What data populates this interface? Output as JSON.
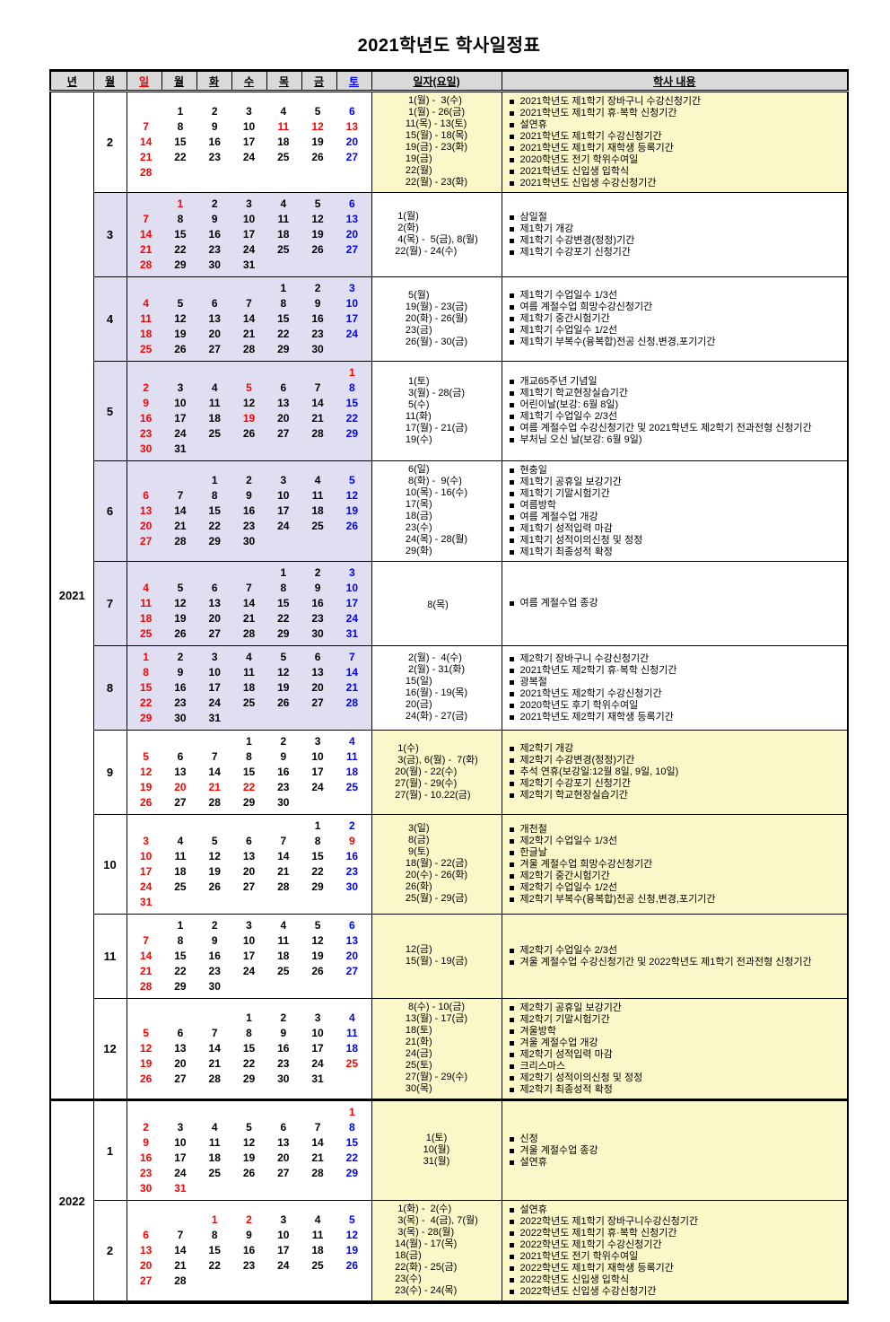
{
  "title": "2021학년도  학사일정표",
  "table_header": {
    "year": "년",
    "month": "월",
    "weekdays": [
      "일",
      "월",
      "화",
      "수",
      "목",
      "금",
      "토"
    ],
    "date": "일자(요일)",
    "content": "학사 내용"
  },
  "colors": {
    "sunday_red": "#ff0000",
    "saturday_blue": "#0000ff",
    "holiday_red": "#ff0000",
    "first_semester_calendar_bg": "#dfdff1",
    "second_semester_panel_bg": "#faf8c8",
    "header_bg": "#d9d9d9"
  },
  "years": [
    {
      "label": "2021",
      "months": [
        {
          "month": "2",
          "theme": "yellow",
          "red": [
            11,
            12,
            13
          ],
          "weeks": [
            [
              null,
              1,
              2,
              3,
              4,
              5,
              6
            ],
            [
              7,
              8,
              9,
              10,
              11,
              12,
              13
            ],
            [
              14,
              15,
              16,
              17,
              18,
              19,
              20
            ],
            [
              21,
              22,
              23,
              24,
              25,
              26,
              27
            ],
            [
              28,
              null,
              null,
              null,
              null,
              null,
              null
            ]
          ],
          "dates": [
            " 1(월) -  3(수)",
            " 1(월) - 26(금)",
            "11(목) - 13(토)",
            "15(월) - 18(목)",
            "19(금) - 23(화)",
            "19(금)",
            "22(월)",
            "22(월) - 23(화)"
          ],
          "events": [
            "2021학년도 제1학기 장바구니 수강신청기간",
            "2021학년도 제1학기 휴·복학 신청기간",
            "설연휴",
            "2021학년도 제1학기 수강신청기간",
            "2021학년도 제1학기 재학생 등록기간",
            "2020학년도 전기 학위수여일",
            "2021학년도 신입생 입학식",
            "2021학년도 신입생 수강신청기간"
          ]
        },
        {
          "month": "3",
          "theme": "lavender",
          "red": [
            1
          ],
          "weeks": [
            [
              null,
              1,
              2,
              3,
              4,
              5,
              6
            ],
            [
              7,
              8,
              9,
              10,
              11,
              12,
              13
            ],
            [
              14,
              15,
              16,
              17,
              18,
              19,
              20
            ],
            [
              21,
              22,
              23,
              24,
              25,
              26,
              27
            ],
            [
              28,
              29,
              30,
              31,
              null,
              null,
              null
            ]
          ],
          "dates": [
            " 1(월)",
            " 2(화)",
            " 4(목) -  5(금), 8(월)",
            "22(월) - 24(수)"
          ],
          "events": [
            "삼일절",
            "제1학기 개강",
            "제1학기 수강변경(정정)기간",
            "제1학기 수강포기 신청기간"
          ]
        },
        {
          "month": "4",
          "theme": "lavender",
          "red": [],
          "weeks": [
            [
              null,
              null,
              null,
              null,
              1,
              2,
              3
            ],
            [
              4,
              5,
              6,
              7,
              8,
              9,
              10
            ],
            [
              11,
              12,
              13,
              14,
              15,
              16,
              17
            ],
            [
              18,
              19,
              20,
              21,
              22,
              23,
              24
            ],
            [
              25,
              26,
              27,
              28,
              29,
              30,
              null
            ]
          ],
          "dates": [
            " 5(월)",
            "19(월) - 23(금)",
            "20(화) - 26(월)",
            "23(금)",
            "26(월) - 30(금)"
          ],
          "events": [
            "제1학기 수업일수 1/3선",
            "여름 계절수업 희망수강신청기간",
            "제1학기 중간시험기간",
            "제1학기 수업일수 1/2선",
            "제1학기 부복수(융복합)전공 신청,변경,포기기간"
          ]
        },
        {
          "month": "5",
          "theme": "lavender",
          "red": [
            1,
            5,
            19
          ],
          "weeks": [
            [
              null,
              null,
              null,
              null,
              null,
              null,
              1
            ],
            [
              2,
              3,
              4,
              5,
              6,
              7,
              8
            ],
            [
              9,
              10,
              11,
              12,
              13,
              14,
              15
            ],
            [
              16,
              17,
              18,
              19,
              20,
              21,
              22
            ],
            [
              23,
              24,
              25,
              26,
              27,
              28,
              29
            ],
            [
              30,
              31,
              null,
              null,
              null,
              null,
              null
            ]
          ],
          "dates": [
            " 1(토)",
            " 3(월) - 28(금)",
            " 5(수)",
            "11(화)",
            "17(월) - 21(금)",
            "19(수)"
          ],
          "events": [
            "개교65주년 기념일",
            "제1학기 학교현장실습기간",
            "어린이날(보강: 6월 8일)",
            "제1학기 수업일수 2/3선",
            "여름 계절수업 수강신청기간 및 2021학년도 제2학기 전과전형 신청기간",
            "부처님 오신 날(보강: 6월 9일)"
          ]
        },
        {
          "month": "6",
          "theme": "lavender",
          "red": [],
          "weeks": [
            [
              null,
              null,
              1,
              2,
              3,
              4,
              5
            ],
            [
              6,
              7,
              8,
              9,
              10,
              11,
              12
            ],
            [
              13,
              14,
              15,
              16,
              17,
              18,
              19
            ],
            [
              20,
              21,
              22,
              23,
              24,
              25,
              26
            ],
            [
              27,
              28,
              29,
              30,
              null,
              null,
              null
            ]
          ],
          "dates": [
            " 6(일)",
            " 8(화) -  9(수)",
            "10(목) - 16(수)",
            "17(목)",
            "18(금)",
            "23(수)",
            "24(목) - 28(월)",
            "29(화)"
          ],
          "events": [
            "현충일",
            "제1학기 공휴일 보강기간",
            "제1학기 기말시험기간",
            "여름방학",
            "여름 계절수업 개강",
            "제1학기 성적입력 마감",
            "제1학기 성적이의신청 및 정정",
            "제1학기 최종성적 확정"
          ]
        },
        {
          "month": "7",
          "theme": "lavender",
          "red": [],
          "weeks": [
            [
              null,
              null,
              null,
              null,
              1,
              2,
              3
            ],
            [
              4,
              5,
              6,
              7,
              8,
              9,
              10
            ],
            [
              11,
              12,
              13,
              14,
              15,
              16,
              17
            ],
            [
              18,
              19,
              20,
              21,
              22,
              23,
              24
            ],
            [
              25,
              26,
              27,
              28,
              29,
              30,
              31
            ]
          ],
          "dates": [
            " 8(목)"
          ],
          "events": [
            "여름 계절수업 종강"
          ]
        },
        {
          "month": "8",
          "theme": "lavender",
          "red": [],
          "weeks": [
            [
              1,
              2,
              3,
              4,
              5,
              6,
              7
            ],
            [
              8,
              9,
              10,
              11,
              12,
              13,
              14
            ],
            [
              15,
              16,
              17,
              18,
              19,
              20,
              21
            ],
            [
              22,
              23,
              24,
              25,
              26,
              27,
              28
            ],
            [
              29,
              30,
              31,
              null,
              null,
              null,
              null
            ]
          ],
          "dates": [
            " 2(월) -  4(수)",
            " 2(월) - 31(화)",
            "15(일)",
            "16(월) - 19(목)",
            "20(금)",
            "24(화) - 27(금)"
          ],
          "events": [
            "제2학기 장바구니 수강신청기간",
            "2021학년도 제2학기 휴·복학 신청기간",
            "광복절",
            "2021학년도 제2학기 수강신청기간",
            "2020학년도 후기 학위수여일",
            "2021학년도 제2학기 재학생 등록기간"
          ]
        },
        {
          "month": "9",
          "theme": "yellow",
          "red": [
            20,
            21,
            22
          ],
          "weeks": [
            [
              null,
              null,
              null,
              1,
              2,
              3,
              4
            ],
            [
              5,
              6,
              7,
              8,
              9,
              10,
              11
            ],
            [
              12,
              13,
              14,
              15,
              16,
              17,
              18
            ],
            [
              19,
              20,
              21,
              22,
              23,
              24,
              25
            ],
            [
              26,
              27,
              28,
              29,
              30,
              null,
              null
            ]
          ],
          "dates": [
            " 1(수)",
            " 3(금), 6(월) -  7(화)",
            "20(월) - 22(수)",
            "27(월) - 29(수)",
            "27(월) - 10.22(금)"
          ],
          "events": [
            "제2학기 개강",
            "제2학기 수강변경(정정)기간",
            "추석 연휴(보강일:12월 8일, 9일, 10일)",
            "제2학기 수강포기 신청기간",
            "제2학기 학교현장실습기간"
          ]
        },
        {
          "month": "10",
          "theme": "yellow",
          "red": [
            9
          ],
          "weeks": [
            [
              null,
              null,
              null,
              null,
              null,
              1,
              2
            ],
            [
              3,
              4,
              5,
              6,
              7,
              8,
              9
            ],
            [
              10,
              11,
              12,
              13,
              14,
              15,
              16
            ],
            [
              17,
              18,
              19,
              20,
              21,
              22,
              23
            ],
            [
              24,
              25,
              26,
              27,
              28,
              29,
              30
            ],
            [
              31,
              null,
              null,
              null,
              null,
              null,
              null
            ]
          ],
          "dates": [
            " 3(일)",
            " 8(금)",
            " 9(토)",
            "18(월) - 22(금)",
            "20(수) - 26(화)",
            "26(화)",
            "25(월) - 29(금)"
          ],
          "events": [
            "개천절",
            "제2학기 수업일수 1/3선",
            "한글날",
            "겨울 계절수업 희망수강신청기간",
            "제2학기 중간시험기간",
            "제2학기 수업일수 1/2선",
            "제2학기 부복수(융복합)전공 신청,변경,포기기간"
          ]
        },
        {
          "month": "11",
          "theme": "yellow",
          "red": [],
          "weeks": [
            [
              null,
              1,
              2,
              3,
              4,
              5,
              6
            ],
            [
              7,
              8,
              9,
              10,
              11,
              12,
              13
            ],
            [
              14,
              15,
              16,
              17,
              18,
              19,
              20
            ],
            [
              21,
              22,
              23,
              24,
              25,
              26,
              27
            ],
            [
              28,
              29,
              30,
              null,
              null,
              null,
              null
            ]
          ],
          "dates": [
            "12(금)",
            "15(월) - 19(금)"
          ],
          "events": [
            "제2학기 수업일수 2/3선",
            "겨울 계절수업 수강신청기간 및 2022학년도 제1학기 전과전형 신청기간"
          ]
        },
        {
          "month": "12",
          "theme": "yellow",
          "red": [
            25
          ],
          "weeks": [
            [
              null,
              null,
              null,
              1,
              2,
              3,
              4
            ],
            [
              5,
              6,
              7,
              8,
              9,
              10,
              11
            ],
            [
              12,
              13,
              14,
              15,
              16,
              17,
              18
            ],
            [
              19,
              20,
              21,
              22,
              23,
              24,
              25
            ],
            [
              26,
              27,
              28,
              29,
              30,
              31,
              null
            ]
          ],
          "dates": [
            " 8(수) - 10(금)",
            "13(월) - 17(금)",
            "18(토)",
            "21(화)",
            "24(금)",
            "25(토)",
            "27(월) - 29(수)",
            "30(목)"
          ],
          "events": [
            "제2학기 공휴일 보강기간",
            "제2학기 기말시험기간",
            "겨울방학",
            "겨울 계절수업 개강",
            "제2학기 성적입력 마감",
            "크리스마스",
            "제2학기 성적이의신청 및 정정",
            "제2학기 최종성적 확정"
          ]
        }
      ]
    },
    {
      "label": "2022",
      "months": [
        {
          "month": "1",
          "theme": "yellow",
          "red": [
            1,
            31
          ],
          "weeks": [
            [
              null,
              null,
              null,
              null,
              null,
              null,
              1
            ],
            [
              2,
              3,
              4,
              5,
              6,
              7,
              8
            ],
            [
              9,
              10,
              11,
              12,
              13,
              14,
              15
            ],
            [
              16,
              17,
              18,
              19,
              20,
              21,
              22
            ],
            [
              23,
              24,
              25,
              26,
              27,
              28,
              29
            ],
            [
              30,
              31,
              null,
              null,
              null,
              null,
              null
            ]
          ],
          "dates": [
            " 1(토)",
            "10(월)",
            "31(월)"
          ],
          "events": [
            "신정",
            "겨울 계절수업 종강",
            "설연휴"
          ]
        },
        {
          "month": "2",
          "theme": "yellow",
          "red": [
            1,
            2
          ],
          "weeks": [
            [
              null,
              null,
              1,
              2,
              3,
              4,
              5
            ],
            [
              6,
              7,
              8,
              9,
              10,
              11,
              12
            ],
            [
              13,
              14,
              15,
              16,
              17,
              18,
              19
            ],
            [
              20,
              21,
              22,
              23,
              24,
              25,
              26
            ],
            [
              27,
              28,
              null,
              null,
              null,
              null,
              null
            ]
          ],
          "dates": [
            " 1(화) -  2(수)",
            " 3(목) -  4(금), 7(월)",
            " 3(목) - 28(월)",
            "14(월) - 17(목)",
            "18(금)",
            "22(화) - 25(금)",
            "23(수)",
            "23(수) - 24(목)"
          ],
          "events": [
            "설연휴",
            "2022학년도 제1학기 장바구니수강신청기간",
            "2022학년도 제1학기 휴·복학 신청기간",
            "2022학년도 제1학기 수강신청기간",
            "2021학년도 전기 학위수여일",
            "2022학년도 제1학기 재학생 등록기간",
            "2022학년도 신입생 입학식",
            "2022학년도 신입생 수강신청기간"
          ]
        }
      ]
    }
  ]
}
